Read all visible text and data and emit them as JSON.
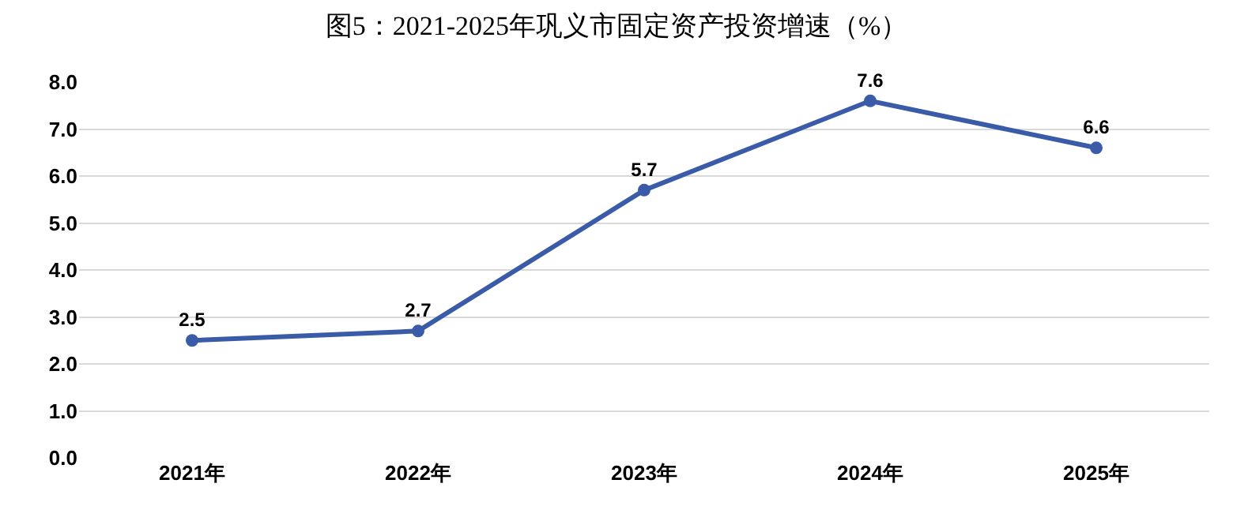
{
  "chart_data": {
    "type": "line",
    "title": "图5：2021-2025年巩义市固定资产投资增速（%）",
    "categories": [
      "2021年",
      "2022年",
      "2023年",
      "2024年",
      "2025年"
    ],
    "series": [
      {
        "color": "#3a5ba8",
        "values": [
          2.5,
          2.7,
          5.7,
          7.6,
          6.6
        ]
      }
    ],
    "ylim": [
      0,
      8
    ],
    "yticks": [
      {
        "value": 0,
        "label": "0.0"
      },
      {
        "value": 1,
        "label": "1.0"
      },
      {
        "value": 2,
        "label": "2.0"
      },
      {
        "value": 3,
        "label": "3.0"
      },
      {
        "value": 4,
        "label": "4.0"
      },
      {
        "value": 5,
        "label": "5.0"
      },
      {
        "value": 6,
        "label": "6.0"
      },
      {
        "value": 7,
        "label": "7.0"
      },
      {
        "value": 8,
        "label": "8.0"
      }
    ],
    "grid": "y",
    "marker": "circle",
    "line_style": "solid",
    "data_labels": true
  }
}
